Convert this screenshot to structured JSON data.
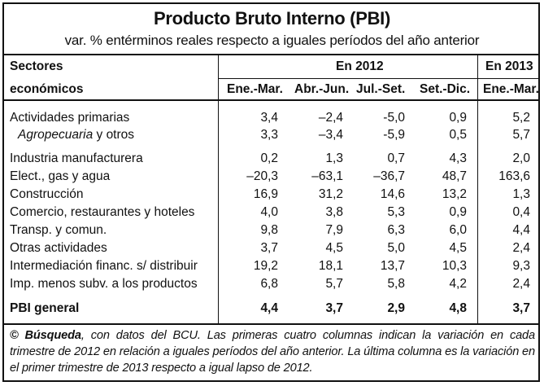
{
  "title": "Producto Bruto Interno (PBI)",
  "subtitle": "var. % entérminos reales respecto a iguales períodos del año anterior",
  "header": {
    "sectores_l1": "Sectores",
    "sectores_l2": "económicos",
    "group_2012": "En 2012",
    "group_2013": "En 2013",
    "cols": [
      "Ene.-Mar.",
      "Abr.-Jun.",
      "Jul.-Set.",
      "Set.-Dic.",
      "Ene.-Mar."
    ]
  },
  "rows": [
    {
      "label": "Actividades primarias",
      "values": [
        "3,4",
        "–2,4",
        "-5,0",
        "0,9",
        "5,2"
      ]
    },
    {
      "label_italic": "Agropecuaria",
      "label_rest": " y otros",
      "values": [
        "3,3",
        "–3,4",
        "-5,9",
        "0,5",
        "5,7"
      ]
    },
    {
      "label": "Industria manufacturera",
      "values": [
        "0,2",
        "1,3",
        "0,7",
        "4,3",
        "2,0"
      ]
    },
    {
      "label": "Elect., gas y agua",
      "values": [
        "–20,3",
        "–63,1",
        "–36,7",
        "48,7",
        "163,6"
      ]
    },
    {
      "label": "Construcción",
      "values": [
        "16,9",
        "31,2",
        "14,6",
        "13,2",
        "1,3"
      ]
    },
    {
      "label": "Comercio, restaurantes y hoteles",
      "values": [
        "4,0",
        "3,8",
        "5,3",
        "0,9",
        "0,4"
      ]
    },
    {
      "label": "Transp. y comun.",
      "values": [
        "9,8",
        "7,9",
        "6,3",
        "6,0",
        "4,4"
      ]
    },
    {
      "label": "Otras actividades",
      "values": [
        "3,7",
        "4,5",
        "5,0",
        "4,5",
        "2,4"
      ]
    },
    {
      "label": "Intermediación financ. s/ distribuir",
      "values": [
        "19,2",
        "18,1",
        "13,7",
        "10,3",
        "9,3"
      ]
    },
    {
      "label": "Imp. menos subv. a los productos",
      "values": [
        "6,8",
        "5,7",
        "5,8",
        "4,2",
        "2,4"
      ]
    },
    {
      "label": "PBI general",
      "values": [
        "4,4",
        "3,7",
        "2,9",
        "4,8",
        "3,7"
      ]
    }
  ],
  "note": {
    "prefix": "© ",
    "source": "Búsqueda",
    "text": ", con datos del BCU. Las primeras cuatro columnas indican la variación en cada trimestre de 2012 en relación a iguales períodos del año anterior. La última columna es la variación en el primer trimestre de 2013 respecto a igual lapso de 2012."
  }
}
